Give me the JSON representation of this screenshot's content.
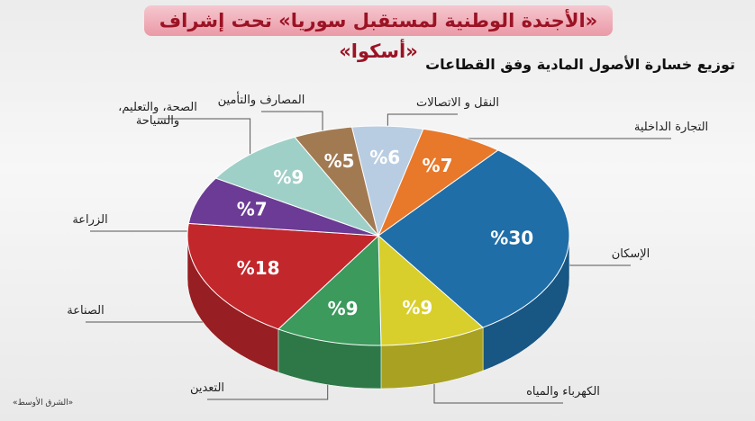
{
  "chart_data": {
    "type": "pie",
    "title": "«الأجندة الوطنية لمستقبل سوريا» تحت إشراف «أسكوا»",
    "subtitle": "توزيع خسارة الأصول المادية وفق القطاعات",
    "source": "«الشرق الأوسط»",
    "categories": [
      "النقل و الاتصالات",
      "التجارة الداخلية",
      "الإسكان",
      "الكهرباء والمياه",
      "التعدين",
      "الصناعة",
      "الزراعة",
      "الصحة، والتعليم، والسياحة",
      "المصارف والتأمين"
    ],
    "values": [
      6,
      7,
      30,
      9,
      9,
      18,
      7,
      9,
      5
    ],
    "value_labels": [
      "%6",
      "%7",
      "%30",
      "%9",
      "%9",
      "%18",
      "%7",
      "%9",
      "%5"
    ],
    "colors": [
      "#b9cde2",
      "#e8782a",
      "#1f6ea8",
      "#d8cf2c",
      "#3b9a5c",
      "#c2272b",
      "#6b3b95",
      "#9fd0c8",
      "#a27a52"
    ]
  }
}
